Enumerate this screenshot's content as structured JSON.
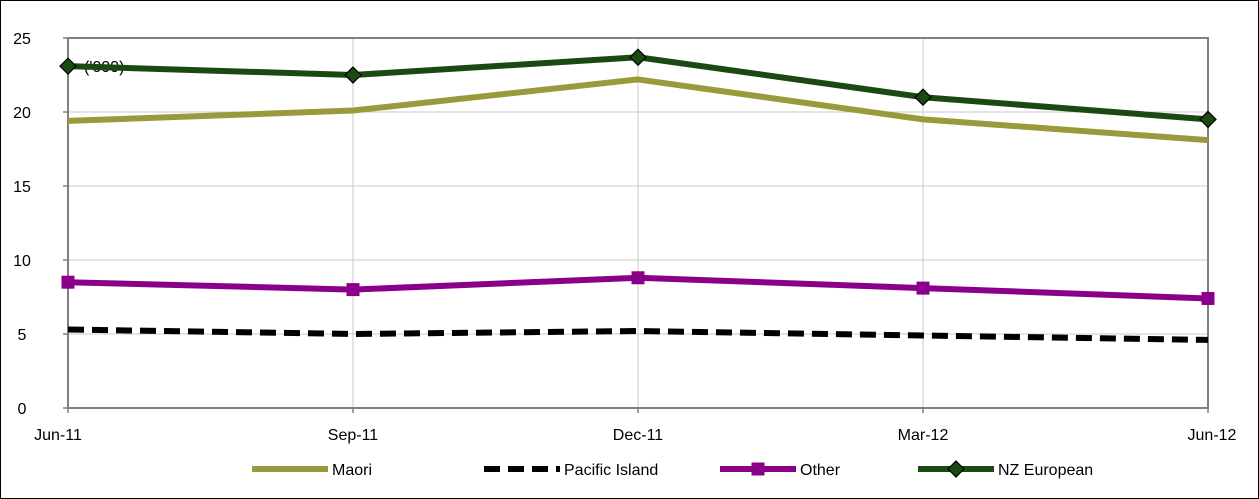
{
  "chart_data": {
    "type": "line",
    "unit_label": "('000)",
    "categories": [
      "Jun-11",
      "Sep-11",
      "Dec-11",
      "Mar-12",
      "Jun-12"
    ],
    "ylim": [
      0,
      25
    ],
    "yticks": [
      0,
      5,
      10,
      15,
      20,
      25
    ],
    "grid": true,
    "legend_position": "bottom",
    "series": [
      {
        "name": "Maori",
        "values": [
          19.4,
          20.1,
          22.2,
          19.5,
          18.1
        ],
        "color": "#9a9a3c",
        "style": "solid",
        "marker": "none"
      },
      {
        "name": "Pacific Island",
        "values": [
          5.3,
          5.0,
          5.2,
          4.9,
          4.6
        ],
        "color": "#000000",
        "style": "dashed",
        "marker": "none"
      },
      {
        "name": "Other",
        "values": [
          8.5,
          8.0,
          8.8,
          8.1,
          7.4
        ],
        "color": "#8b008b",
        "style": "solid",
        "marker": "square"
      },
      {
        "name": "NZ European",
        "values": [
          23.1,
          22.5,
          23.7,
          21.0,
          19.5
        ],
        "color": "#1a4a12",
        "style": "solid",
        "marker": "diamond"
      }
    ]
  }
}
